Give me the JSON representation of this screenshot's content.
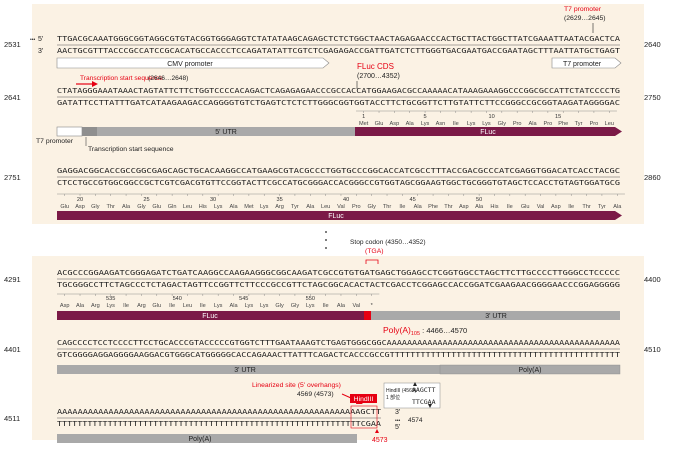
{
  "colors": {
    "background": "#fbf2e4",
    "cds": "#7b1a47",
    "utr": "#a9a9a9",
    "annotation_red": "#e60012",
    "text": "#222222",
    "aa": "#444444"
  },
  "blocks": [
    {
      "left_pos": "2531",
      "right_pos": "2640",
      "top_seq": "TTGACGCAAATGGGCGGTAGGCGTGTACGGTGGGAGGTCTATATAAGCAGAGCTCTCTGGCTAACTAGAGAACCCACTGCTTACTGGCTTATCGAAATTAATACGACTCA",
      "bot_seq": "AACTGCGTTTACCCGCCATCCGCACATGCCACCCTCCAGATATATTCGTCTCGAGAGACCGATTGATCTCTTGGGTGACGAATGACCGAATAGCTTTAATTATGCTGAGT",
      "five": "5'",
      "three": "3'",
      "dots": "•••"
    },
    {
      "left_pos": "2641",
      "right_pos": "2750",
      "top_seq": "CTATAGGGAAATAAACTAGTATTCTTCTGGTCCCCACAGACTCAGAGAGAACCCGCCACCATGGAAGACGCCAAAAACATAAAGAAAGGCCCGGCGCCATTCTATCCCCTG",
      "bot_seq": "GATATTCCTTATTTGATCATAAGAAGACCAGGGGTGTCTGAGTCTCTCTTGGGCGGTGGTACCTTCTGCGGTTCTTGTATTCTTCCGGGCCGCGGTAAGATAGGGGAC"
    },
    {
      "left_pos": "2751",
      "right_pos": "2860",
      "top_seq": "GAGGACGGCACCGCCGGCGAGCAGCTGCACAAGGCCATGAAGCGTACGCCCTGGTGCCCGGCACCATCGCCTTTACCGACGCCCATCGAGGTGGACATCACCTACGC",
      "bot_seq": "CTCCTGCCGTGGCGGCCGCTCGTCGACGTGTTCCGGTACTTCGCCATGCGGGACCACGGGCCGTGGTAGCGGAAGTGGCTGCGGGTGTAGCTCCACCTGTAGTGGATGCG"
    },
    {
      "left_pos": "4291",
      "right_pos": "4400",
      "top_seq": "ACGCCCGGAAGATCGGGAGATCTGATCAAGGCCAAGAAGGGCGGCAAGATCGCCGTGTGATGAGCTGGAGCCTCGGTGGCCTAGCTTCTTGCCCCTTGGGCCTCCCCC",
      "bot_seq": "TGCGGGCCTTCTAGCCCTCTAGACTAGTTCCGGTTCTTCCCGCCGTTCTAGCGGCACACTACTCGACCTCGGAGCCACCGGATCGAAGAACGGGGAACCCGGAGGGGG"
    },
    {
      "left_pos": "4401",
      "right_pos": "4510",
      "top_seq": "CAGCCCCTCCTCCCCTTCCTGCACCCGTACCCCCGTGGTCTTTGAATAAAGTCTGAGTGGGCGGCAAAAAAAAAAAAAAAAAAAAAAAAAAAAAAAAAAAAAAAAAAAAAA",
      "bot_seq": "GTCGGGGAGGAGGGGAAGGACGTGGGCATGGGGGCACCAGAAACTTATTTCAGACTCACCCGCCGTTTTTTTTTTTTTTTTTTTTTTTTTTTTTTTTTTTTTTTTTTTTT"
    },
    {
      "left_pos": "4511",
      "top_seq": "AAAAAAAAAAAAAAAAAAAAAAAAAAAAAAAAAAAAAAAAAAAAAAAAAAAAAAAAAAAGCTT",
      "bot_seq": "TTTTTTTTTTTTTTTTTTTTTTTTTTTTTTTTTTTTTTTTTTTTTTTTTTTTTTTTTTTTCGAA",
      "three": "3'",
      "five": "5'",
      "end_pos": "4574"
    }
  ],
  "features": {
    "cmv": "CMV promoter",
    "t7_1": "T7 promoter",
    "t7_2": "T7 promoter",
    "tss": "Transcription start sequence",
    "utr5": "5' UTR",
    "fluc_2": "FLuc",
    "fluc_3": "FLuc",
    "fluc_4": "FLuc",
    "utr3_4": "3' UTR",
    "utr3_5": "3' UTR",
    "polya_5": "Poly(A)",
    "polya_6": "Poly(A)"
  },
  "annotations": {
    "t7_title": "T7 promoter",
    "t7_range": "(2629…2645)",
    "tss_title": "Transcription start sequence",
    "tss_range": "(2646…2648)",
    "fluc_title": "FLuc CDS",
    "fluc_range": "(2700…4352)",
    "stop_title": "Stop codon (4350…4352)",
    "stop_codon": "(TGA)",
    "polya_title": "Poly(A)",
    "polya_sub": "105",
    "polya_range": " : 4466…4570",
    "lin_title": "Linearized site (5' overhangs)",
    "lin_range": "4569 (4573)",
    "hind": "HindIII",
    "hind_box_label": "HindIII",
    "hind_box_pos": "(4569)",
    "hind_box_sub": "1 部位",
    "hind_box_top": "AAGCTT",
    "hind_box_bot": "TTCGAA",
    "end_pos_red": "4573",
    "ellipsis": "•\n•\n•"
  },
  "aa_rows": [
    {
      "nums": [
        {
          "at": 1,
          "t": "1"
        },
        {
          "at": 13,
          "t": "5"
        },
        {
          "at": 26,
          "t": "10"
        },
        {
          "at": 39,
          "t": "15"
        }
      ],
      "aas": [
        "Met",
        "Glu",
        "Asp",
        "Ala",
        "Lys",
        "Asn",
        "Ile",
        "Lys",
        "Lys",
        "Gly",
        "Pro",
        "Ala",
        "Pro",
        "Phe",
        "Tyr",
        "Pro",
        "Leu"
      ]
    },
    {
      "nums": [
        {
          "at": 4,
          "t": "20"
        },
        {
          "at": 17,
          "t": "25"
        },
        {
          "at": 30,
          "t": "30"
        },
        {
          "at": 43,
          "t": "35"
        },
        {
          "at": 56,
          "t": "40"
        },
        {
          "at": 69,
          "t": "45"
        },
        {
          "at": 82,
          "t": "50"
        }
      ],
      "aas": [
        "Glu",
        "Asp",
        "Gly",
        "Thr",
        "Ala",
        "Gly",
        "Glu",
        "Gln",
        "Leu",
        "His",
        "Lys",
        "Ala",
        "Met",
        "Lys",
        "Arg",
        "Tyr",
        "Ala",
        "Leu",
        "Val",
        "Pro",
        "Gly",
        "Thr",
        "Ile",
        "Ala",
        "Phe",
        "Thr",
        "Asp",
        "Ala",
        "His",
        "Ile",
        "Glu",
        "Val",
        "Asp",
        "Ile",
        "Thr",
        "Tyr",
        "Ala"
      ]
    },
    {
      "nums": [
        {
          "at": 10,
          "t": "535"
        },
        {
          "at": 23,
          "t": "540"
        },
        {
          "at": 36,
          "t": "545"
        },
        {
          "at": 49,
          "t": "550"
        }
      ],
      "aas": [
        "Asp",
        "Ala",
        "Arg",
        "Lys",
        "Ile",
        "Arg",
        "Glu",
        "Ile",
        "Leu",
        "Ile",
        "Lys",
        "Ala",
        "Lys",
        "Lys",
        "Gly",
        "Gly",
        "Lys",
        "Ile",
        "Ala",
        "Val",
        "*"
      ]
    }
  ]
}
